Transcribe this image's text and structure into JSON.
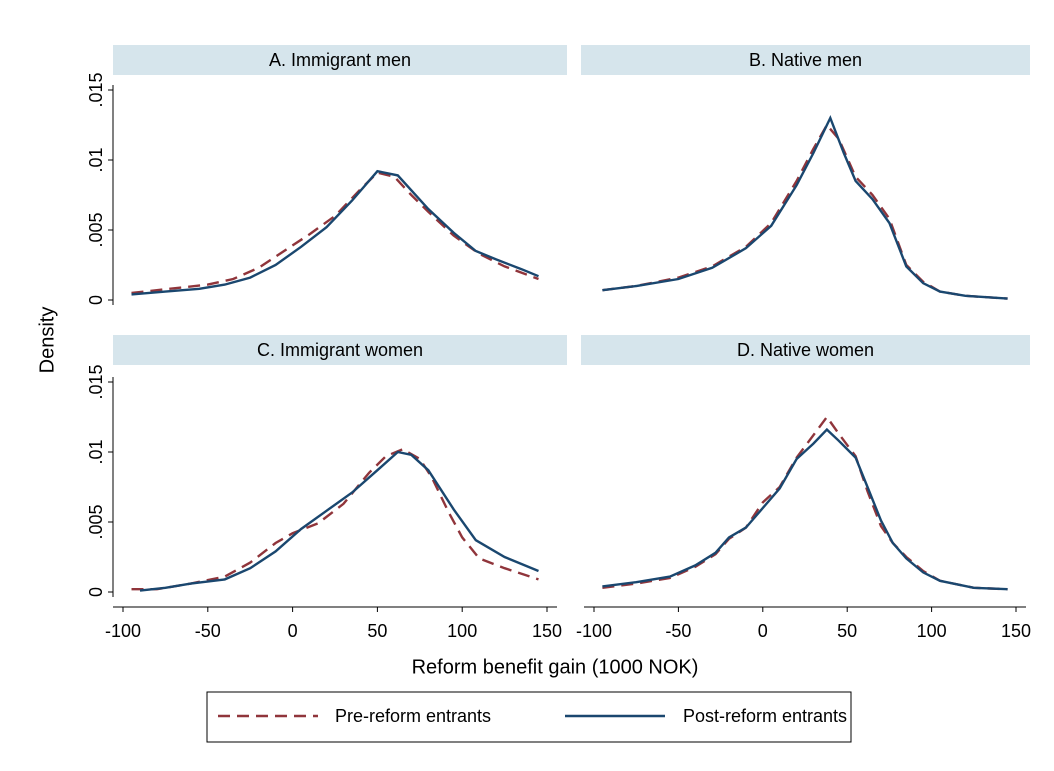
{
  "y_label": "Density",
  "x_label": "Reform benefit gain (1000 NOK)",
  "chart_data": [
    {
      "type": "line",
      "title": "A. Immigrant men",
      "xlim": [
        -100,
        150
      ],
      "ylim": [
        0,
        0.015
      ],
      "yticks": [
        0,
        {
          "value": 0.005,
          "label": ".005"
        },
        {
          "value": 0.01,
          "label": ".01"
        },
        {
          "value": 0.015,
          "label": ".015"
        }
      ],
      "series": [
        {
          "name": "Pre-reform entrants",
          "color": "#90353b",
          "style": "dashed",
          "x": [
            -95,
            -80,
            -65,
            -50,
            -35,
            -20,
            -5,
            10,
            25,
            40,
            50,
            60,
            70,
            80,
            95,
            110,
            125,
            145
          ],
          "values": [
            0.0005,
            0.0007,
            0.0009,
            0.0011,
            0.0015,
            0.0023,
            0.0035,
            0.0047,
            0.006,
            0.0079,
            0.0091,
            0.0088,
            0.0075,
            0.0063,
            0.0046,
            0.0033,
            0.0024,
            0.0015
          ]
        },
        {
          "name": "Post-reform entrants",
          "color": "#1a476f",
          "style": "solid",
          "x": [
            -95,
            -75,
            -55,
            -40,
            -25,
            -10,
            5,
            20,
            35,
            50,
            62,
            80,
            95,
            108,
            120,
            135,
            145
          ],
          "values": [
            0.0004,
            0.0006,
            0.0008,
            0.0011,
            0.0016,
            0.0025,
            0.0038,
            0.0052,
            0.0071,
            0.0092,
            0.0089,
            0.0065,
            0.0048,
            0.0035,
            0.0029,
            0.0022,
            0.0017
          ]
        }
      ]
    },
    {
      "type": "line",
      "title": "B. Native men",
      "xlim": [
        -100,
        150
      ],
      "ylim": [
        0,
        0.015
      ],
      "series": [
        {
          "color": "#90353b",
          "style": "dashed",
          "x": [
            -95,
            -75,
            -50,
            -30,
            -10,
            5,
            20,
            30,
            38,
            45,
            55,
            65,
            75,
            85,
            95,
            105,
            120,
            145
          ],
          "values": [
            0.0007,
            0.001,
            0.0016,
            0.0024,
            0.0038,
            0.0055,
            0.0085,
            0.0108,
            0.0125,
            0.0115,
            0.0088,
            0.0075,
            0.0058,
            0.0025,
            0.0013,
            0.0006,
            0.0003,
            0.0001
          ]
        },
        {
          "color": "#1a476f",
          "style": "solid",
          "x": [
            -95,
            -75,
            -50,
            -30,
            -10,
            5,
            20,
            30,
            40,
            48,
            55,
            65,
            75,
            85,
            95,
            105,
            120,
            145
          ],
          "values": [
            0.0007,
            0.001,
            0.0015,
            0.0023,
            0.0037,
            0.0053,
            0.0082,
            0.0105,
            0.013,
            0.0105,
            0.0085,
            0.0072,
            0.0055,
            0.0024,
            0.0012,
            0.0006,
            0.0003,
            0.0001
          ]
        }
      ]
    },
    {
      "type": "line",
      "title": "C. Immigrant women",
      "xlim": [
        -100,
        150
      ],
      "ylim": [
        0,
        0.015
      ],
      "yticks": [
        0,
        {
          "value": 0.005,
          "label": ".005"
        },
        {
          "value": 0.01,
          "label": ".01"
        },
        {
          "value": 0.015,
          "label": ".015"
        }
      ],
      "xticks": [
        -100,
        -50,
        0,
        50,
        100,
        150
      ],
      "series": [
        {
          "color": "#90353b",
          "style": "dashed",
          "x": [
            -95,
            -80,
            -60,
            -40,
            -25,
            -10,
            0,
            15,
            30,
            45,
            55,
            65,
            75,
            82,
            92,
            100,
            110,
            125,
            145
          ],
          "values": [
            0.0002,
            0.0002,
            0.0006,
            0.0011,
            0.0021,
            0.0035,
            0.0042,
            0.0049,
            0.0063,
            0.0085,
            0.0097,
            0.0102,
            0.0095,
            0.0082,
            0.0057,
            0.0039,
            0.0024,
            0.0017,
            0.0009
          ]
        },
        {
          "color": "#1a476f",
          "style": "solid",
          "x": [
            -90,
            -75,
            -60,
            -40,
            -25,
            -10,
            5,
            20,
            35,
            50,
            62,
            70,
            80,
            95,
            108,
            125,
            145
          ],
          "values": [
            0.0001,
            0.0003,
            0.0006,
            0.0009,
            0.0017,
            0.0029,
            0.0045,
            0.0058,
            0.0071,
            0.0087,
            0.01,
            0.0098,
            0.0087,
            0.0059,
            0.0037,
            0.0025,
            0.0015
          ]
        }
      ]
    },
    {
      "type": "line",
      "title": "D. Native women",
      "xlim": [
        -100,
        150
      ],
      "ylim": [
        0,
        0.015
      ],
      "xticks": [
        -100,
        -50,
        0,
        50,
        100,
        150
      ],
      "series": [
        {
          "color": "#90353b",
          "style": "dashed",
          "x": [
            -95,
            -75,
            -55,
            -40,
            -28,
            -20,
            -10,
            0,
            10,
            20,
            30,
            38,
            45,
            55,
            62,
            70,
            77,
            85,
            95,
            105,
            125,
            145
          ],
          "values": [
            0.0003,
            0.0006,
            0.001,
            0.0018,
            0.0027,
            0.0038,
            0.0046,
            0.0064,
            0.0075,
            0.0096,
            0.0112,
            0.0125,
            0.0113,
            0.0097,
            0.0072,
            0.0047,
            0.0035,
            0.0025,
            0.0015,
            0.0008,
            0.0003,
            0.0002
          ]
        },
        {
          "color": "#1a476f",
          "style": "solid",
          "x": [
            -95,
            -75,
            -55,
            -40,
            -28,
            -20,
            -10,
            0,
            10,
            20,
            30,
            38,
            45,
            55,
            62,
            70,
            77,
            85,
            95,
            105,
            125,
            145
          ],
          "values": [
            0.0004,
            0.0007,
            0.0011,
            0.0019,
            0.0028,
            0.0039,
            0.0046,
            0.006,
            0.0074,
            0.0095,
            0.0106,
            0.0116,
            0.0108,
            0.0096,
            0.0075,
            0.0051,
            0.0035,
            0.0024,
            0.0014,
            0.0008,
            0.0003,
            0.0002
          ]
        }
      ]
    }
  ]
}
